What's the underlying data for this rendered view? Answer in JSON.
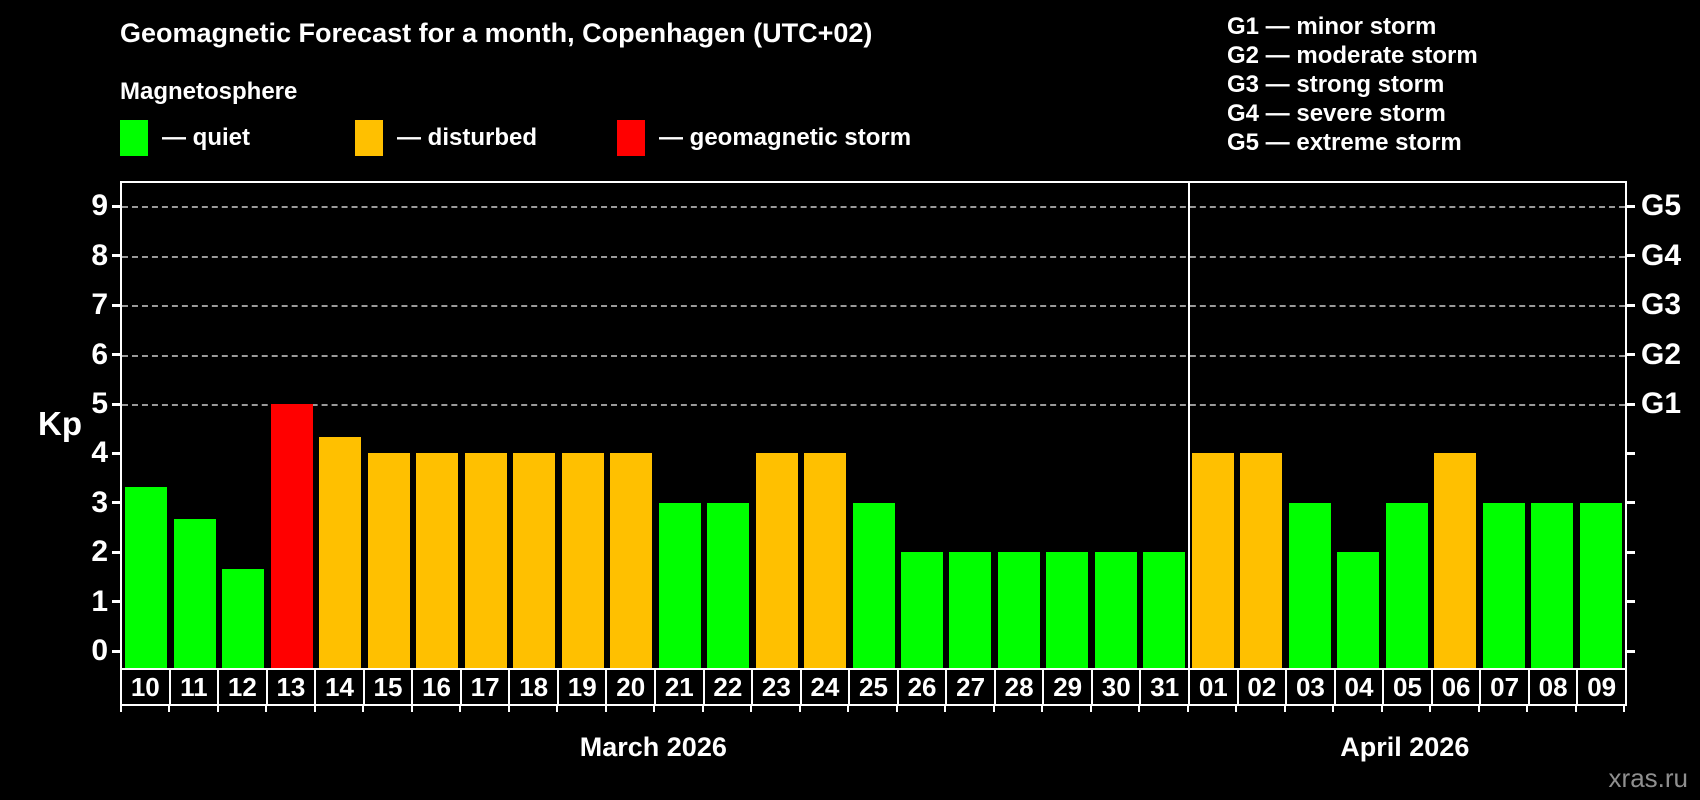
{
  "title": "Geomagnetic Forecast for a month, Copenhagen (UTC+02)",
  "subtitle": "Magnetosphere",
  "legend": [
    {
      "name": "quiet",
      "label": "— quiet",
      "color": "#00ff00"
    },
    {
      "name": "disturbed",
      "label": "— disturbed",
      "color": "#ffc000"
    },
    {
      "name": "storm",
      "label": "— geomagnetic storm",
      "color": "#ff0000"
    }
  ],
  "storm_scale_legend": [
    "G1 — minor storm",
    "G2 — moderate storm",
    "G3 — strong storm",
    "G4 — severe storm",
    "G5 — extreme storm"
  ],
  "watermark": "xras.ru",
  "chart_data": {
    "type": "bar",
    "ylabel": "Kp",
    "ylim": [
      0,
      9.4
    ],
    "grid": "dashed horizontal at Kp 5-9",
    "y_ticks": [
      0,
      1,
      2,
      3,
      4,
      5,
      6,
      7,
      8,
      9
    ],
    "g_labels": [
      {
        "kp": 5,
        "label": "G1"
      },
      {
        "kp": 6,
        "label": "G2"
      },
      {
        "kp": 7,
        "label": "G3"
      },
      {
        "kp": 8,
        "label": "G4"
      },
      {
        "kp": 9,
        "label": "G5"
      }
    ],
    "status_colors": {
      "quiet": "#00ff00",
      "disturbed": "#ffc000",
      "storm": "#ff0000"
    },
    "months": [
      {
        "label": "March 2026",
        "days": 22
      },
      {
        "label": "April 2026",
        "days": 9
      }
    ],
    "categories": [
      "10",
      "11",
      "12",
      "13",
      "14",
      "15",
      "16",
      "17",
      "18",
      "19",
      "20",
      "21",
      "22",
      "23",
      "24",
      "25",
      "26",
      "27",
      "28",
      "29",
      "30",
      "31",
      "01",
      "02",
      "03",
      "04",
      "05",
      "06",
      "07",
      "08",
      "09"
    ],
    "values": [
      3.33,
      2.67,
      1.67,
      5,
      4.33,
      4,
      4,
      4,
      4,
      4,
      4,
      3,
      3,
      4,
      4,
      3,
      2,
      2,
      2,
      2,
      2,
      2,
      4,
      4,
      3,
      2,
      3,
      4,
      3,
      3,
      3
    ],
    "statuses": [
      "quiet",
      "quiet",
      "quiet",
      "storm",
      "disturbed",
      "disturbed",
      "disturbed",
      "disturbed",
      "disturbed",
      "disturbed",
      "disturbed",
      "quiet",
      "quiet",
      "disturbed",
      "disturbed",
      "quiet",
      "quiet",
      "quiet",
      "quiet",
      "quiet",
      "quiet",
      "quiet",
      "disturbed",
      "disturbed",
      "quiet",
      "quiet",
      "quiet",
      "disturbed",
      "quiet",
      "quiet",
      "quiet"
    ]
  }
}
